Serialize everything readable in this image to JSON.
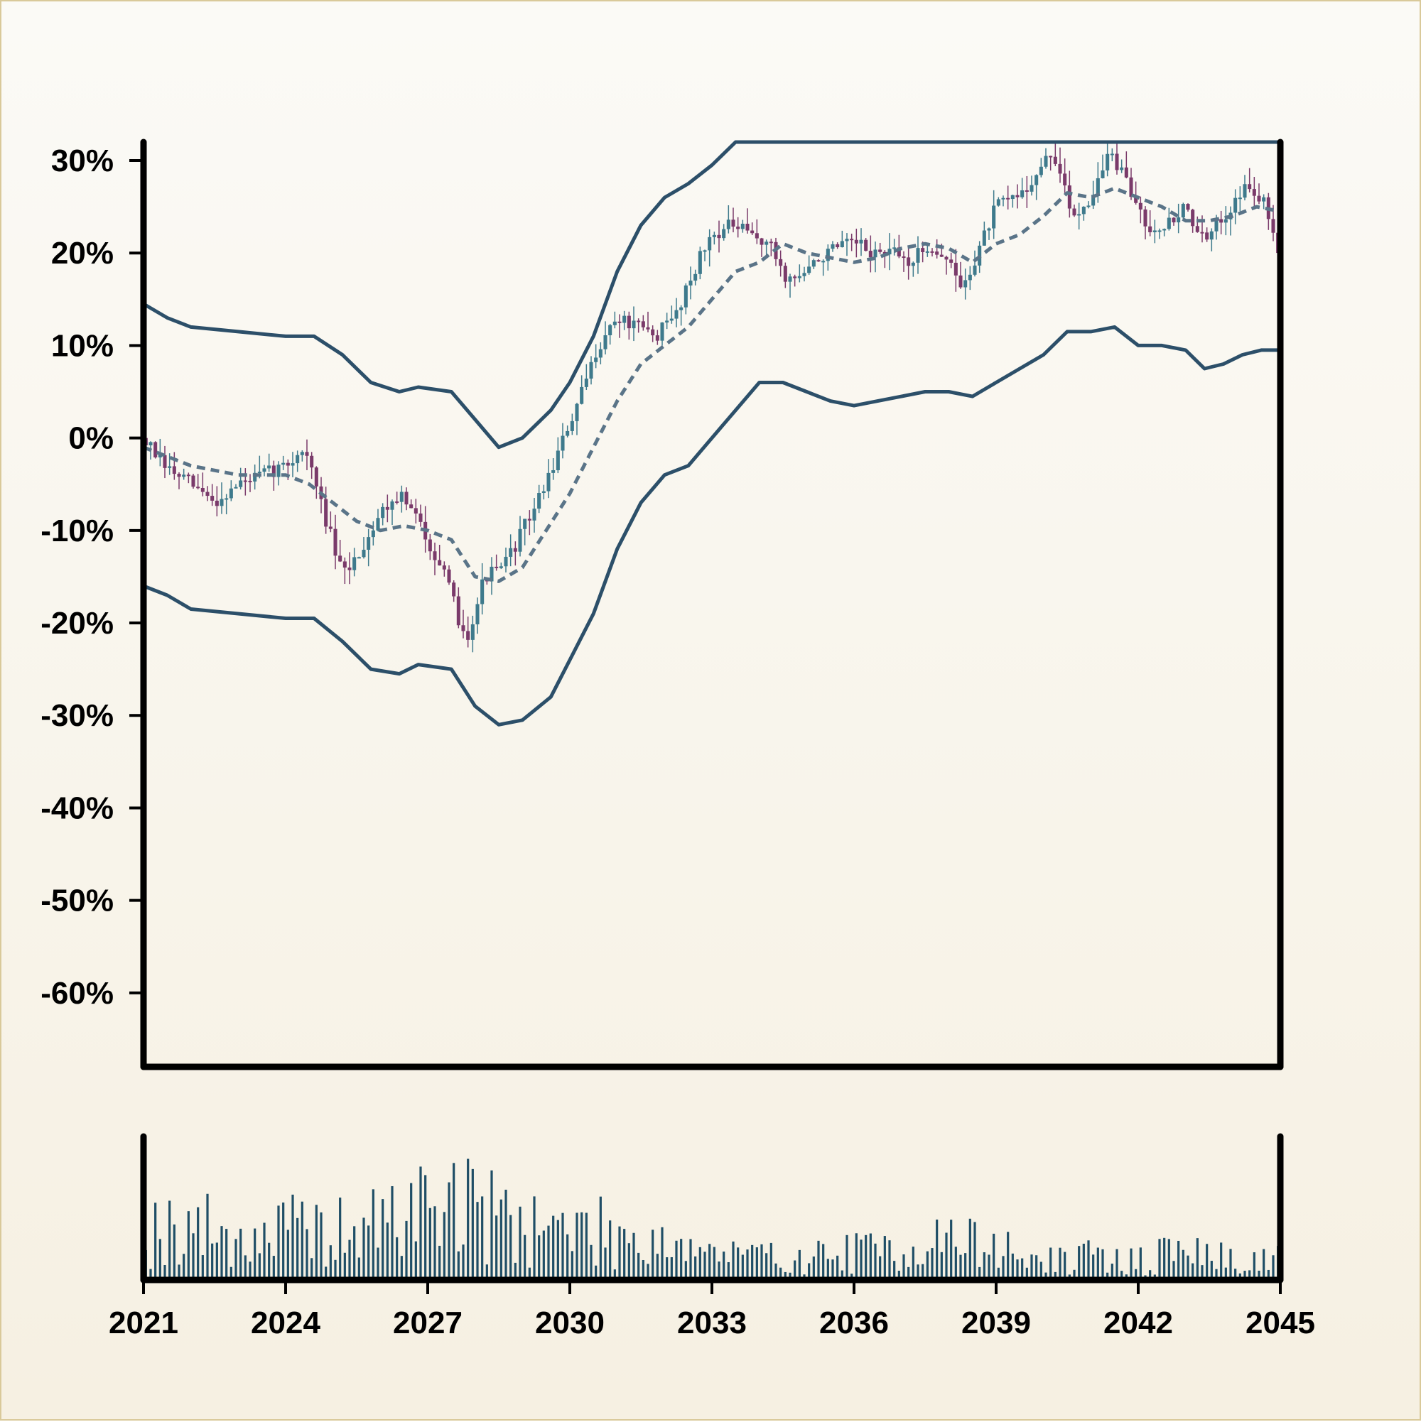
{
  "chart_data": {
    "type": "candlestick",
    "title": "",
    "xlabel": "",
    "ylabel": "",
    "y_tick_labels": [
      "30%",
      "20%",
      "10%",
      "0%",
      "-10%",
      "-20%",
      "-30%",
      "-40%",
      "-50%",
      "-60%"
    ],
    "y_ticks": [
      30,
      20,
      10,
      0,
      -10,
      -20,
      -30,
      -40,
      -50,
      -60
    ],
    "x_tick_labels": [
      "2021",
      "2024",
      "2027",
      "2030",
      "2033",
      "2036",
      "2039",
      "2042",
      "2045"
    ],
    "x_ticks": [
      2021,
      2024,
      2027,
      2030,
      2033,
      2036,
      2039,
      2042,
      2045
    ],
    "xlim": [
      2021,
      2045
    ],
    "ylim": [
      -68,
      32
    ],
    "grid": false,
    "legend": "none",
    "colors": {
      "up": "#3e7a8c",
      "down": "#7a3a6a",
      "band": "#2c4f69",
      "ma": "#5a7488",
      "volume": "#1f4e66",
      "axis": "#000000"
    },
    "price_path": [
      [
        2021.0,
        0
      ],
      [
        2021.4,
        -3
      ],
      [
        2022.0,
        -5
      ],
      [
        2022.5,
        -7
      ],
      [
        2023.0,
        -5
      ],
      [
        2023.5,
        -4
      ],
      [
        2024.0,
        -3
      ],
      [
        2024.4,
        -1
      ],
      [
        2024.8,
        -8
      ],
      [
        2025.2,
        -15
      ],
      [
        2025.6,
        -12
      ],
      [
        2026.0,
        -8
      ],
      [
        2026.4,
        -6
      ],
      [
        2026.8,
        -9
      ],
      [
        2027.2,
        -13
      ],
      [
        2027.5,
        -17
      ],
      [
        2027.8,
        -22
      ],
      [
        2028.2,
        -15
      ],
      [
        2028.6,
        -14
      ],
      [
        2029.0,
        -10
      ],
      [
        2029.4,
        -6
      ],
      [
        2029.8,
        -1
      ],
      [
        2030.2,
        4
      ],
      [
        2030.6,
        10
      ],
      [
        2031.0,
        13
      ],
      [
        2031.4,
        12
      ],
      [
        2031.8,
        11
      ],
      [
        2032.2,
        13
      ],
      [
        2032.6,
        18
      ],
      [
        2033.0,
        22
      ],
      [
        2033.4,
        23
      ],
      [
        2033.8,
        22
      ],
      [
        2034.2,
        21
      ],
      [
        2034.6,
        17
      ],
      [
        2035.0,
        18
      ],
      [
        2035.4,
        20
      ],
      [
        2036.0,
        21
      ],
      [
        2036.4,
        20
      ],
      [
        2036.8,
        20
      ],
      [
        2037.2,
        19
      ],
      [
        2037.6,
        21
      ],
      [
        2038.0,
        19
      ],
      [
        2038.3,
        16
      ],
      [
        2038.6,
        20
      ],
      [
        2039.0,
        25
      ],
      [
        2039.4,
        26
      ],
      [
        2039.8,
        28
      ],
      [
        2040.2,
        31
      ],
      [
        2040.6,
        24
      ],
      [
        2041.0,
        26
      ],
      [
        2041.4,
        31
      ],
      [
        2041.8,
        27
      ],
      [
        2042.2,
        23
      ],
      [
        2042.6,
        23
      ],
      [
        2043.0,
        25
      ],
      [
        2043.4,
        21
      ],
      [
        2043.8,
        24
      ],
      [
        2044.2,
        27
      ],
      [
        2044.6,
        26
      ],
      [
        2045.0,
        20
      ]
    ],
    "moving_average": [
      [
        2021.0,
        -1
      ],
      [
        2022.0,
        -3
      ],
      [
        2023.0,
        -4
      ],
      [
        2024.0,
        -4
      ],
      [
        2024.5,
        -5
      ],
      [
        2025.0,
        -7
      ],
      [
        2025.5,
        -9
      ],
      [
        2026.0,
        -10
      ],
      [
        2026.5,
        -9.5
      ],
      [
        2027.0,
        -10
      ],
      [
        2027.5,
        -11
      ],
      [
        2028.0,
        -15
      ],
      [
        2028.5,
        -15.5
      ],
      [
        2029.0,
        -14
      ],
      [
        2029.5,
        -10
      ],
      [
        2030.0,
        -6
      ],
      [
        2030.5,
        -1
      ],
      [
        2031.0,
        4
      ],
      [
        2031.5,
        8
      ],
      [
        2032.0,
        10
      ],
      [
        2032.5,
        12
      ],
      [
        2033.0,
        15
      ],
      [
        2033.5,
        18
      ],
      [
        2034.0,
        19
      ],
      [
        2034.5,
        21
      ],
      [
        2035.0,
        20
      ],
      [
        2035.5,
        19.5
      ],
      [
        2036.0,
        19
      ],
      [
        2036.5,
        19.5
      ],
      [
        2037.0,
        20.5
      ],
      [
        2037.5,
        21
      ],
      [
        2038.0,
        20.5
      ],
      [
        2038.5,
        19
      ],
      [
        2039.0,
        21
      ],
      [
        2039.5,
        22
      ],
      [
        2040.0,
        24
      ],
      [
        2040.5,
        26.5
      ],
      [
        2041.0,
        26
      ],
      [
        2041.5,
        27
      ],
      [
        2042.0,
        26
      ],
      [
        2042.5,
        25
      ],
      [
        2043.0,
        23.5
      ],
      [
        2043.5,
        23.5
      ],
      [
        2044.0,
        24
      ],
      [
        2044.5,
        25
      ],
      [
        2045.0,
        24.5
      ]
    ],
    "upper_band": [
      [
        2021.0,
        14.5
      ],
      [
        2021.5,
        13
      ],
      [
        2022.0,
        12
      ],
      [
        2023.0,
        11.5
      ],
      [
        2024.0,
        11
      ],
      [
        2024.6,
        11
      ],
      [
        2025.2,
        9
      ],
      [
        2025.8,
        6
      ],
      [
        2026.4,
        5
      ],
      [
        2026.8,
        5.5
      ],
      [
        2027.5,
        5
      ],
      [
        2028.0,
        2
      ],
      [
        2028.5,
        -1
      ],
      [
        2029.0,
        0
      ],
      [
        2029.6,
        3
      ],
      [
        2030.0,
        6
      ],
      [
        2030.5,
        11
      ],
      [
        2031.0,
        18
      ],
      [
        2031.5,
        23
      ],
      [
        2032.0,
        26
      ],
      [
        2032.5,
        27.5
      ],
      [
        2033.0,
        29.5
      ],
      [
        2033.5,
        32
      ],
      [
        2045.0,
        32
      ]
    ],
    "lower_band": [
      [
        2021.0,
        -16
      ],
      [
        2021.5,
        -17
      ],
      [
        2022.0,
        -18.5
      ],
      [
        2023.0,
        -19
      ],
      [
        2024.0,
        -19.5
      ],
      [
        2024.6,
        -19.5
      ],
      [
        2025.2,
        -22
      ],
      [
        2025.8,
        -25
      ],
      [
        2026.4,
        -25.5
      ],
      [
        2026.8,
        -24.5
      ],
      [
        2027.5,
        -25
      ],
      [
        2028.0,
        -29
      ],
      [
        2028.5,
        -31
      ],
      [
        2029.0,
        -30.5
      ],
      [
        2029.6,
        -28
      ],
      [
        2030.0,
        -24
      ],
      [
        2030.5,
        -19
      ],
      [
        2031.0,
        -12
      ],
      [
        2031.5,
        -7
      ],
      [
        2032.0,
        -4
      ],
      [
        2032.5,
        -3
      ],
      [
        2033.0,
        0
      ],
      [
        2033.5,
        3
      ],
      [
        2034.0,
        6
      ],
      [
        2034.5,
        6
      ],
      [
        2035.0,
        5
      ],
      [
        2035.5,
        4
      ],
      [
        2036.0,
        3.5
      ],
      [
        2036.5,
        4
      ],
      [
        2037.0,
        4.5
      ],
      [
        2037.5,
        5
      ],
      [
        2038.0,
        5
      ],
      [
        2038.5,
        4.5
      ],
      [
        2039.0,
        6
      ],
      [
        2039.5,
        7.5
      ],
      [
        2040.0,
        9
      ],
      [
        2040.5,
        11.5
      ],
      [
        2041.0,
        11.5
      ],
      [
        2041.5,
        12
      ],
      [
        2042.0,
        10
      ],
      [
        2042.5,
        10
      ],
      [
        2043.0,
        9.5
      ],
      [
        2043.4,
        7.5
      ],
      [
        2043.8,
        8
      ],
      [
        2044.2,
        9
      ],
      [
        2044.6,
        9.5
      ],
      [
        2045.0,
        9.5
      ]
    ],
    "volume_profile": [
      [
        2021.0,
        0.55
      ],
      [
        2022.0,
        0.6
      ],
      [
        2023.0,
        0.45
      ],
      [
        2024.0,
        0.55
      ],
      [
        2025.0,
        0.5
      ],
      [
        2026.0,
        0.6
      ],
      [
        2027.0,
        0.85
      ],
      [
        2027.6,
        0.9
      ],
      [
        2028.0,
        0.75
      ],
      [
        2029.0,
        0.65
      ],
      [
        2030.0,
        0.55
      ],
      [
        2031.0,
        0.5
      ],
      [
        2032.0,
        0.45
      ],
      [
        2033.0,
        0.3
      ],
      [
        2034.0,
        0.25
      ],
      [
        2035.0,
        0.25
      ],
      [
        2036.0,
        0.3
      ],
      [
        2037.0,
        0.35
      ],
      [
        2038.0,
        0.45
      ],
      [
        2039.0,
        0.35
      ],
      [
        2040.0,
        0.2
      ],
      [
        2041.0,
        0.25
      ],
      [
        2042.0,
        0.2
      ],
      [
        2043.0,
        0.35
      ],
      [
        2044.0,
        0.2
      ],
      [
        2045.0,
        0.25
      ]
    ],
    "bar_count": 240
  }
}
